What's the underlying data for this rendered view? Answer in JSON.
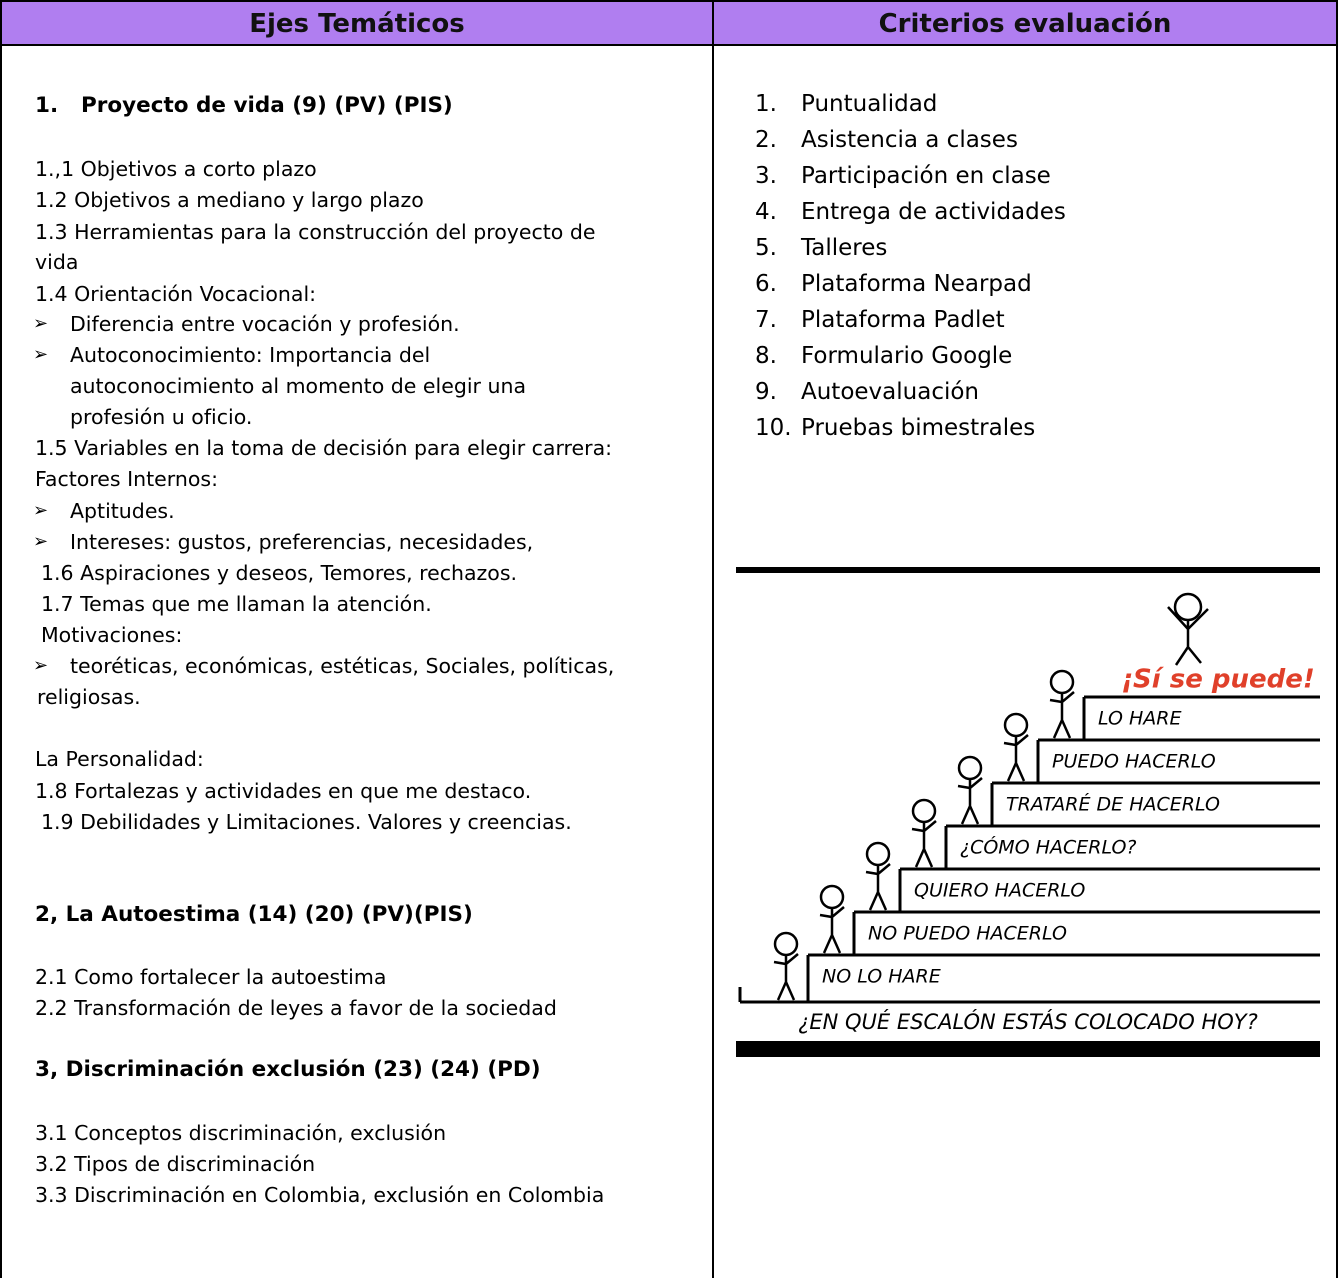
{
  "table": {
    "headers": [
      "Ejes Temáticos",
      "Criterios evaluación"
    ],
    "topics": [
      {
        "number": "1.",
        "text": "Proyecto de vida (9) (PV) (PIS)"
      },
      "1.,1 Objetivos a corto plazo",
      "1.2 Objetivos a mediano y largo plazo",
      "1.3 Herramientas para la construcción del proyecto de",
      "vida",
      "1.4 Orientación Vocacional:",
      "Diferencia entre vocación y profesión.",
      "Autoconocimiento: Importancia del",
      "autoconocimiento al momento de elegir una",
      "profesión u oficio.",
      "1.5 Variables en la toma de decisión para elegir carrera:",
      "Factores Internos:",
      "Aptitudes.",
      "Intereses: gustos, preferencias, necesidades,",
      "1.6 Aspiraciones y deseos, Temores, rechazos.",
      "1.7 Temas que me llaman la atención.",
      "Motivaciones:",
      "teoréticas, económicas, estéticas, Sociales, políticas,",
      "religiosas.",
      "La Personalidad:",
      "1.8 Fortalezas y actividades en que me destaco.",
      "1.9 Debilidades y Limitaciones. Valores y creencias.",
      "2, La Autoestima (14) (20) (PV)(PIS)",
      "2.1 Como fortalecer la autoestima",
      "2.2 Transformación de leyes a favor de la sociedad",
      "3, Discriminación exclusión (23) (24) (PD)",
      "3.1 Conceptos discriminación, exclusión",
      "3.2 Tipos de discriminación",
      "3.3 Discriminación en Colombia, exclusión en Colombia"
    ],
    "criteria": [
      {
        "number": "1.",
        "text": "Puntualidad"
      },
      {
        "number": "2.",
        "text": "Asistencia a clases"
      },
      {
        "number": "3.",
        "text": "Participación en clase"
      },
      {
        "number": "4.",
        "text": "Entrega de actividades"
      },
      {
        "number": "5.",
        "text": "Talleres"
      },
      {
        "number": "6.",
        "text": "Plataforma Nearpad"
      },
      {
        "number": "7.",
        "text": "Plataforma Padlet"
      },
      {
        "number": "8.",
        "text": "Formulario Google"
      },
      {
        "number": "9.",
        "text": "Autoevaluación"
      },
      {
        "number": "10.",
        "text": "Pruebas bimestrales"
      }
    ],
    "image": {
      "slogan": "¡Sí se puede!",
      "steps": [
        "NO LO HARE",
        "NO PUEDO HACERLO",
        "QUIERO HACERLO",
        "¿CÓMO HACERLO?",
        "TRATARÉ DE HACERLO",
        "PUEDO HACERLO",
        "LO HARE"
      ],
      "caption": "¿EN QUÉ ESCALÓN ESTÁS COLOCADO HOY?"
    }
  }
}
